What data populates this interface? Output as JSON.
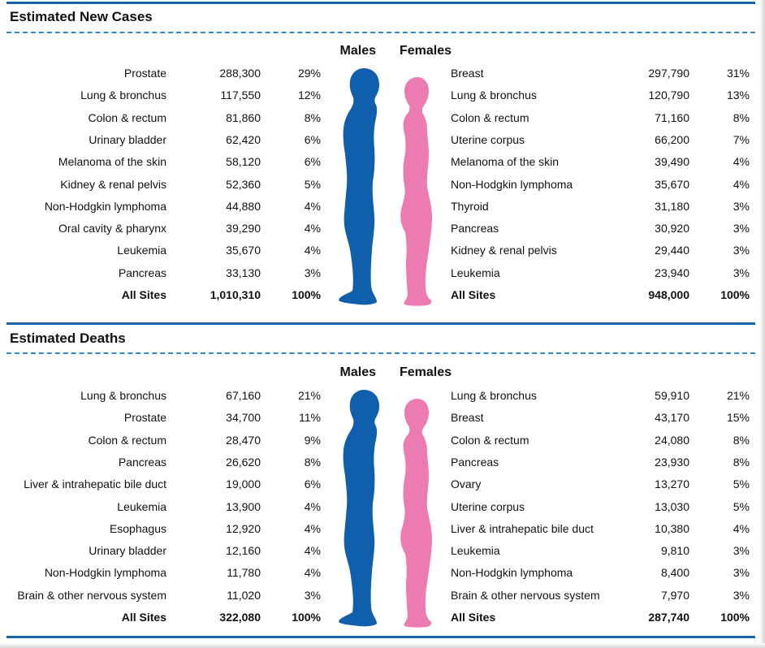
{
  "colors": {
    "rule": "#1663b0",
    "dash": "#2f86cf",
    "male": "#0f5fac",
    "female": "#ec7bb1"
  },
  "sections": [
    {
      "title": "Estimated New Cases",
      "males_label": "Males",
      "females_label": "Females",
      "males": [
        {
          "site": "Prostate",
          "count": "288,300",
          "pct": "29%"
        },
        {
          "site": "Lung & bronchus",
          "count": "117,550",
          "pct": "12%"
        },
        {
          "site": "Colon & rectum",
          "count": "81,860",
          "pct": "8%"
        },
        {
          "site": "Urinary bladder",
          "count": "62,420",
          "pct": "6%"
        },
        {
          "site": "Melanoma of the skin",
          "count": "58,120",
          "pct": "6%"
        },
        {
          "site": "Kidney & renal pelvis",
          "count": "52,360",
          "pct": "5%"
        },
        {
          "site": "Non-Hodgkin lymphoma",
          "count": "44,880",
          "pct": "4%"
        },
        {
          "site": "Oral cavity & pharynx",
          "count": "39,290",
          "pct": "4%"
        },
        {
          "site": "Leukemia",
          "count": "35,670",
          "pct": "4%"
        },
        {
          "site": "Pancreas",
          "count": "33,130",
          "pct": "3%"
        }
      ],
      "males_total": {
        "site": "All Sites",
        "count": "1,010,310",
        "pct": "100%"
      },
      "females": [
        {
          "site": "Breast",
          "count": "297,790",
          "pct": "31%"
        },
        {
          "site": "Lung & bronchus",
          "count": "120,790",
          "pct": "13%"
        },
        {
          "site": "Colon & rectum",
          "count": "71,160",
          "pct": "8%"
        },
        {
          "site": "Uterine corpus",
          "count": "66,200",
          "pct": "7%"
        },
        {
          "site": "Melanoma of the skin",
          "count": "39,490",
          "pct": "4%"
        },
        {
          "site": "Non-Hodgkin lymphoma",
          "count": "35,670",
          "pct": "4%"
        },
        {
          "site": "Thyroid",
          "count": "31,180",
          "pct": "3%"
        },
        {
          "site": "Pancreas",
          "count": "30,920",
          "pct": "3%"
        },
        {
          "site": "Kidney & renal pelvis",
          "count": "29,440",
          "pct": "3%"
        },
        {
          "site": "Leukemia",
          "count": "23,940",
          "pct": "3%"
        }
      ],
      "females_total": {
        "site": "All Sites",
        "count": "948,000",
        "pct": "100%"
      }
    },
    {
      "title": "Estimated Deaths",
      "males_label": "Males",
      "females_label": "Females",
      "males": [
        {
          "site": "Lung & bronchus",
          "count": "67,160",
          "pct": "21%"
        },
        {
          "site": "Prostate",
          "count": "34,700",
          "pct": "11%"
        },
        {
          "site": "Colon & rectum",
          "count": "28,470",
          "pct": "9%"
        },
        {
          "site": "Pancreas",
          "count": "26,620",
          "pct": "8%"
        },
        {
          "site": "Liver & intrahepatic bile duct",
          "count": "19,000",
          "pct": "6%"
        },
        {
          "site": "Leukemia",
          "count": "13,900",
          "pct": "4%"
        },
        {
          "site": "Esophagus",
          "count": "12,920",
          "pct": "4%"
        },
        {
          "site": "Urinary bladder",
          "count": "12,160",
          "pct": "4%"
        },
        {
          "site": "Non-Hodgkin lymphoma",
          "count": "11,780",
          "pct": "4%"
        },
        {
          "site": "Brain & other nervous system",
          "count": "11,020",
          "pct": "3%"
        }
      ],
      "males_total": {
        "site": "All Sites",
        "count": "322,080",
        "pct": "100%"
      },
      "females": [
        {
          "site": "Lung & bronchus",
          "count": "59,910",
          "pct": "21%"
        },
        {
          "site": "Breast",
          "count": "43,170",
          "pct": "15%"
        },
        {
          "site": "Colon & rectum",
          "count": "24,080",
          "pct": "8%"
        },
        {
          "site": "Pancreas",
          "count": "23,930",
          "pct": "8%"
        },
        {
          "site": "Ovary",
          "count": "13,270",
          "pct": "5%"
        },
        {
          "site": "Uterine corpus",
          "count": "13,030",
          "pct": "5%"
        },
        {
          "site": "Liver & intrahepatic bile duct",
          "count": "10,380",
          "pct": "4%"
        },
        {
          "site": "Leukemia",
          "count": "9,810",
          "pct": "3%"
        },
        {
          "site": "Non-Hodgkin lymphoma",
          "count": "8,400",
          "pct": "3%"
        },
        {
          "site": "Brain & other nervous system",
          "count": "7,970",
          "pct": "3%"
        }
      ],
      "females_total": {
        "site": "All Sites",
        "count": "287,740",
        "pct": "100%"
      }
    }
  ]
}
